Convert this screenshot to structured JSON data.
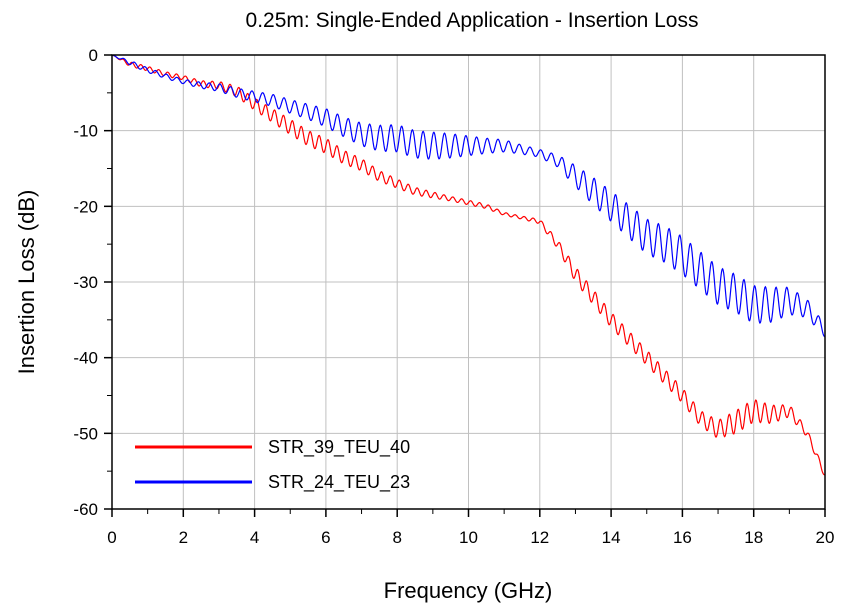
{
  "chart_data": {
    "type": "line",
    "title": "0.25m: Single-Ended Application - Insertion Loss",
    "xlabel": "Frequency (GHz)",
    "ylabel": "Insertion Loss (dB)",
    "xlim": [
      0,
      20
    ],
    "ylim": [
      -60,
      0
    ],
    "xticks": [
      0,
      2,
      4,
      6,
      8,
      10,
      12,
      14,
      16,
      18,
      20
    ],
    "yticks": [
      0,
      -10,
      -20,
      -30,
      -40,
      -50,
      -60
    ],
    "grid": true,
    "legend_position": "lower-left",
    "series": [
      {
        "name": "STR_39_TEU_40",
        "color": "#ff0000",
        "x": [
          0,
          0.5,
          1,
          1.5,
          2,
          2.5,
          3,
          3.5,
          4,
          4.5,
          5,
          5.5,
          6,
          6.5,
          7,
          7.5,
          8,
          8.5,
          9,
          9.5,
          10,
          10.5,
          11,
          11.5,
          12,
          12.5,
          13,
          13.5,
          14,
          14.5,
          15,
          15.5,
          16,
          16.5,
          17,
          17.5,
          18,
          18.5,
          19,
          19.5,
          20
        ],
        "values": [
          0,
          -1.2,
          -1.8,
          -2.5,
          -3.0,
          -3.8,
          -4.0,
          -4.8,
          -6.5,
          -8.0,
          -9.5,
          -11.0,
          -12.0,
          -13.5,
          -14.5,
          -16.0,
          -17.0,
          -18.0,
          -18.5,
          -19.0,
          -19.5,
          -20.0,
          -21.0,
          -21.5,
          -22.0,
          -25.0,
          -29.0,
          -32.0,
          -35.0,
          -37.5,
          -40.0,
          -42.5,
          -45.0,
          -48.0,
          -49.5,
          -48.5,
          -47.0,
          -47.5,
          -47.0,
          -50.0,
          -55.5
        ],
        "ripple_amplitude": [
          0,
          0.3,
          0.3,
          0.3,
          0.3,
          0.4,
          0.5,
          0.7,
          0.8,
          0.9,
          1.0,
          1.0,
          1.0,
          0.9,
          0.8,
          0.7,
          0.6,
          0.5,
          0.4,
          0.3,
          0.3,
          0.3,
          0.2,
          0.2,
          0.3,
          0.6,
          1.0,
          1.0,
          1.0,
          1.0,
          1.0,
          1.0,
          1.0,
          1.0,
          1.2,
          1.5,
          1.5,
          1.2,
          0.8,
          0.5,
          0.4
        ],
        "ripple_period_ghz": 0.25
      },
      {
        "name": "STR_24_TEU_23",
        "color": "#0000ff",
        "x": [
          0,
          0.5,
          1,
          1.5,
          2,
          2.5,
          3,
          3.5,
          4,
          4.5,
          5,
          5.5,
          6,
          6.5,
          7,
          7.5,
          8,
          8.5,
          9,
          9.5,
          10,
          10.5,
          11,
          11.5,
          12,
          12.5,
          13,
          13.5,
          14,
          14.5,
          15,
          15.5,
          16,
          16.5,
          17,
          17.5,
          18,
          18.5,
          19,
          19.5,
          20
        ],
        "values": [
          0,
          -1.0,
          -2.0,
          -2.8,
          -3.5,
          -4.0,
          -4.3,
          -5.0,
          -5.5,
          -6.0,
          -6.8,
          -7.5,
          -8.3,
          -9.5,
          -10.5,
          -11.0,
          -11.0,
          -11.8,
          -12.0,
          -12.0,
          -12.0,
          -12.0,
          -12.0,
          -12.5,
          -13.0,
          -14.0,
          -16.0,
          -18.0,
          -20.0,
          -22.0,
          -24.0,
          -25.0,
          -26.5,
          -28.5,
          -30.5,
          -31.5,
          -33.0,
          -33.0,
          -32.5,
          -33.5,
          -36.5
        ],
        "ripple_amplitude": [
          0,
          0.3,
          0.3,
          0.3,
          0.3,
          0.4,
          0.5,
          0.6,
          0.7,
          0.8,
          0.9,
          1.0,
          1.2,
          1.3,
          1.5,
          1.7,
          1.8,
          1.8,
          1.8,
          1.6,
          1.3,
          1.0,
          0.8,
          0.6,
          0.5,
          0.8,
          1.4,
          1.8,
          2.0,
          2.2,
          2.3,
          2.4,
          2.5,
          2.5,
          2.5,
          2.5,
          2.5,
          2.3,
          1.8,
          1.2,
          0.8
        ],
        "ripple_period_ghz": 0.3
      }
    ]
  }
}
